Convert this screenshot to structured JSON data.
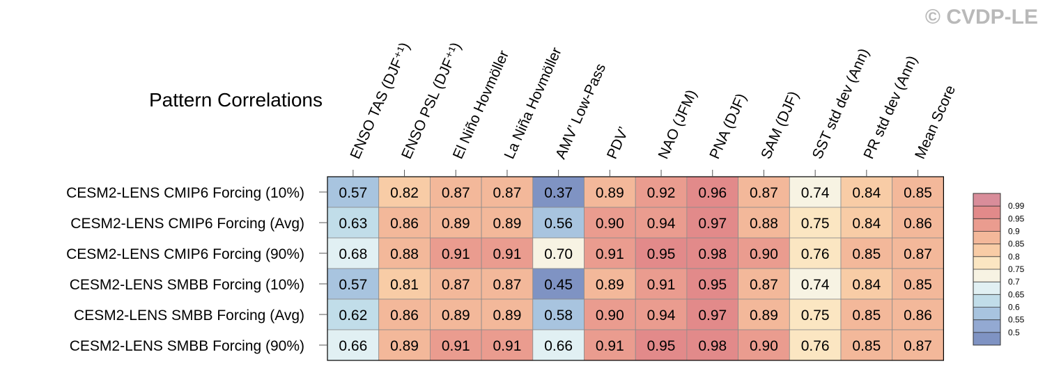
{
  "watermark": "© CVDP-LE",
  "chart_data": {
    "type": "heatmap",
    "title": "Pattern Correlations",
    "columns": [
      "ENSO TAS (DJF⁺¹)",
      "ENSO PSL (DJF⁺¹)",
      "El Niño Hovmöller",
      "La Niña Hovmöller",
      "AMV’ Low-Pass",
      "PDV’",
      "NAO (JFM)",
      "PNA (DJF)",
      "SAM (DJF)",
      "SST std dev (Ann)",
      "PR std dev (Ann)",
      "Mean Score"
    ],
    "rows": [
      "CESM2-LENS CMIP6 Forcing (10%)",
      "CESM2-LENS CMIP6 Forcing (Avg)",
      "CESM2-LENS CMIP6 Forcing (90%)",
      "CESM2-LENS SMBB Forcing (10%)",
      "CESM2-LENS SMBB Forcing (Avg)",
      "CESM2-LENS SMBB Forcing (90%)"
    ],
    "values": [
      [
        "0.57",
        "0.82",
        "0.87",
        "0.87",
        "0.37",
        "0.89",
        "0.92",
        "0.96",
        "0.87",
        "0.74",
        "0.84",
        "0.85"
      ],
      [
        "0.63",
        "0.86",
        "0.89",
        "0.89",
        "0.56",
        "0.90",
        "0.94",
        "0.97",
        "0.88",
        "0.75",
        "0.84",
        "0.86"
      ],
      [
        "0.68",
        "0.88",
        "0.91",
        "0.91",
        "0.70",
        "0.91",
        "0.95",
        "0.98",
        "0.90",
        "0.76",
        "0.85",
        "0.87"
      ],
      [
        "0.57",
        "0.81",
        "0.87",
        "0.87",
        "0.45",
        "0.89",
        "0.91",
        "0.95",
        "0.87",
        "0.74",
        "0.84",
        "0.85"
      ],
      [
        "0.62",
        "0.86",
        "0.89",
        "0.89",
        "0.58",
        "0.90",
        "0.94",
        "0.97",
        "0.89",
        "0.75",
        "0.85",
        "0.86"
      ],
      [
        "0.66",
        "0.89",
        "0.91",
        "0.91",
        "0.66",
        "0.91",
        "0.95",
        "0.98",
        "0.90",
        "0.76",
        "0.85",
        "0.87"
      ]
    ],
    "colorbar": {
      "levels": [
        "0.99",
        "0.95",
        "0.9",
        "0.85",
        "0.8",
        "0.75",
        "0.7",
        "0.65",
        "0.6",
        "0.55",
        "0.5"
      ],
      "colors": [
        "#d98d9a",
        "#e28a8a",
        "#ea9c8f",
        "#f3b89a",
        "#f8cca6",
        "#fbe6c2",
        "#f7f3e3",
        "#e1f0f3",
        "#c1dde9",
        "#a8c4df",
        "#93a9d2",
        "#7f93c3"
      ]
    }
  }
}
